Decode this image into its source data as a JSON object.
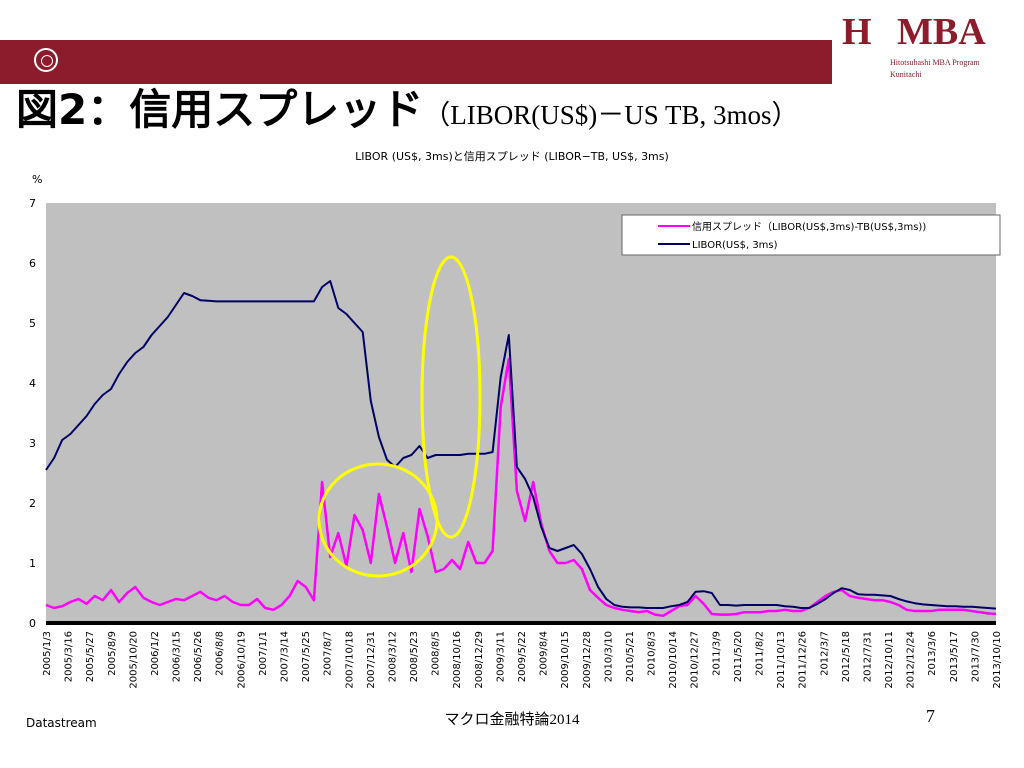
{
  "header": {
    "logo_text": "MBA",
    "logo_mark": "H",
    "logo_sub1": "Hitotsubashi MBA Program",
    "logo_sub2": "Kunitachi",
    "bar_color": "#8c1c2c",
    "seal_icon": "university-seal-icon"
  },
  "slide": {
    "title_main": "図2：信用スプレッド",
    "title_sub": "（LIBOR(US$)－US TB, 3mos）",
    "source": "Datastream",
    "footer": "マクロ金融特論2014",
    "page_number": "7"
  },
  "chart_data": {
    "type": "line",
    "title": "LIBOR (US$, 3ms)と信用スプレッド (LIBOR−TB, US$, 3ms)",
    "ylabel": "%",
    "ylim": [
      0,
      7
    ],
    "yticks": [
      "0",
      "1",
      "2",
      "3",
      "4",
      "5",
      "6",
      "7"
    ],
    "plot_background": "#c0c0c0",
    "grid": false,
    "legend_position": "top-right",
    "x_tick_labels": [
      "2005/1/3",
      "2005/3/16",
      "2005/5/27",
      "2005/8/9",
      "2005/10/20",
      "2006/1/2",
      "2006/3/15",
      "2006/5/26",
      "2006/8/8",
      "2006/10/19",
      "2007/1/1",
      "2007/3/14",
      "2007/5/25",
      "2007/8/7",
      "2007/10/18",
      "2007/12/31",
      "2008/3/12",
      "2008/5/23",
      "2008/8/5",
      "2008/10/16",
      "2008/12/29",
      "2009/3/11",
      "2009/5/22",
      "2009/8/4",
      "2009/10/15",
      "2009/12/28",
      "2010/3/10",
      "2010/5/21",
      "2010/8/3",
      "2010/10/14",
      "2010/12/27",
      "2011/3/9",
      "2011/5/20",
      "2011/8/2",
      "2011/10/13",
      "2011/12/26",
      "2012/3/7",
      "2012/5/18",
      "2012/7/31",
      "2012/10/11",
      "2012/12/24",
      "2013/3/6",
      "2013/5/17",
      "2013/7/30",
      "2013/10/10"
    ],
    "series": [
      {
        "name": "信用スプレッド（LIBOR(US$,3ms)-TB(US$,3ms))",
        "color": "#ff00ff",
        "values": [
          0.3,
          0.25,
          0.28,
          0.35,
          0.4,
          0.32,
          0.45,
          0.38,
          0.55,
          0.35,
          0.5,
          0.6,
          0.42,
          0.35,
          0.3,
          0.35,
          0.4,
          0.38,
          0.45,
          0.52,
          0.42,
          0.38,
          0.45,
          0.35,
          0.3,
          0.3,
          0.4,
          0.25,
          0.22,
          0.3,
          0.45,
          0.7,
          0.6,
          0.38,
          2.35,
          1.1,
          1.5,
          0.95,
          1.8,
          1.55,
          1.0,
          2.15,
          1.6,
          1.0,
          1.5,
          0.85,
          1.9,
          1.45,
          0.85,
          0.9,
          1.05,
          0.9,
          1.35,
          1.0,
          1.0,
          1.2,
          3.6,
          4.4,
          2.2,
          1.7,
          2.35,
          1.65,
          1.2,
          1.0,
          1.0,
          1.05,
          0.9,
          0.55,
          0.42,
          0.3,
          0.25,
          0.22,
          0.2,
          0.18,
          0.2,
          0.14,
          0.12,
          0.2,
          0.28,
          0.3,
          0.45,
          0.32,
          0.15,
          0.14,
          0.14,
          0.15,
          0.18,
          0.18,
          0.18,
          0.2,
          0.2,
          0.22,
          0.2,
          0.2,
          0.25,
          0.35,
          0.45,
          0.52,
          0.55,
          0.45,
          0.42,
          0.4,
          0.38,
          0.38,
          0.35,
          0.3,
          0.22,
          0.2,
          0.2,
          0.2,
          0.22,
          0.22,
          0.22,
          0.22,
          0.2,
          0.18,
          0.16,
          0.15
        ]
      },
      {
        "name": "LIBOR(US$, 3ms)",
        "color": "#000066",
        "values": [
          2.55,
          2.75,
          3.05,
          3.15,
          3.3,
          3.45,
          3.65,
          3.8,
          3.9,
          4.15,
          4.35,
          4.5,
          4.6,
          4.8,
          4.95,
          5.1,
          5.3,
          5.5,
          5.45,
          5.38,
          5.37,
          5.36,
          5.36,
          5.36,
          5.36,
          5.36,
          5.36,
          5.36,
          5.36,
          5.36,
          5.36,
          5.36,
          5.36,
          5.36,
          5.6,
          5.7,
          5.25,
          5.15,
          5.0,
          4.85,
          3.7,
          3.1,
          2.72,
          2.6,
          2.75,
          2.8,
          2.95,
          2.75,
          2.8,
          2.8,
          2.8,
          2.8,
          2.82,
          2.82,
          2.82,
          2.85,
          4.1,
          4.8,
          2.6,
          2.4,
          2.1,
          1.6,
          1.25,
          1.2,
          1.25,
          1.3,
          1.15,
          0.9,
          0.6,
          0.4,
          0.3,
          0.27,
          0.26,
          0.26,
          0.25,
          0.25,
          0.25,
          0.28,
          0.3,
          0.35,
          0.52,
          0.53,
          0.5,
          0.3,
          0.3,
          0.29,
          0.3,
          0.3,
          0.3,
          0.3,
          0.3,
          0.28,
          0.27,
          0.25,
          0.25,
          0.32,
          0.4,
          0.5,
          0.58,
          0.55,
          0.48,
          0.47,
          0.47,
          0.46,
          0.45,
          0.4,
          0.36,
          0.33,
          0.31,
          0.3,
          0.29,
          0.28,
          0.28,
          0.27,
          0.27,
          0.26,
          0.25,
          0.24
        ]
      }
    ]
  }
}
